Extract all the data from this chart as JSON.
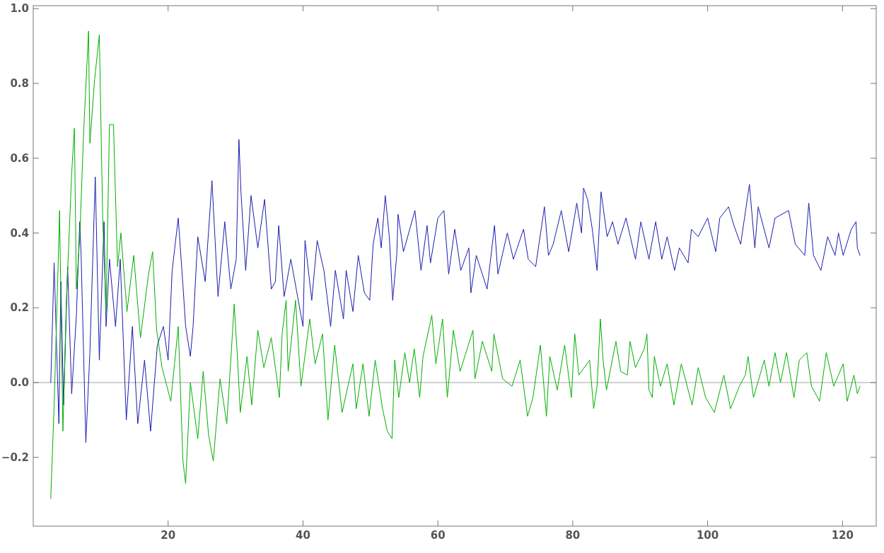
{
  "chart_data": {
    "type": "line",
    "xlim": [
      0,
      125
    ],
    "ylim": [
      -0.384,
      1.008
    ],
    "xticks": [
      20,
      40,
      60,
      80,
      100,
      120
    ],
    "yticks": [
      {
        "value": -0.2,
        "label": "−0.2"
      },
      {
        "value": 0,
        "label": "0.0"
      },
      0.2,
      0.4,
      0.6,
      0.8,
      {
        "value": 1,
        "label": "1.0"
      }
    ],
    "line_style": "solid",
    "ref_lines": [
      {
        "axis": "y",
        "value": 0,
        "color": "#a6a6a6"
      }
    ],
    "series": [
      {
        "color": "#1c1cb0",
        "x": [
          2.6,
          3.1,
          3.8,
          4.1,
          4.5,
          5.1,
          5.7,
          6.4,
          6.9,
          7.1,
          7.8,
          8.4,
          9.2,
          9.8,
          10.5,
          10.8,
          11.3,
          12.2,
          12.9,
          13.8,
          14.7,
          15.5,
          16.5,
          17.4,
          18.4,
          19.3,
          20.0,
          20.6,
          21.5,
          22.2,
          22.6,
          23.3,
          23.7,
          24.4,
          25.5,
          26.5,
          27.4,
          28.4,
          29.3,
          30.1,
          30.5,
          30.8,
          31.5,
          32.3,
          33.3,
          34.3,
          35.3,
          35.9,
          36.4,
          37.2,
          38.2,
          39.0,
          40.0,
          40.3,
          41.3,
          42.1,
          43.1,
          44.1,
          44.8,
          46.0,
          46.4,
          47.4,
          48.2,
          49.1,
          49.9,
          50.4,
          51.1,
          51.6,
          52.2,
          52.8,
          53.3,
          53.9,
          54.1,
          54.9,
          56.6,
          57.5,
          58.4,
          58.9,
          60.0,
          60.9,
          61.6,
          62.5,
          63.4,
          64.6,
          64.9,
          65.7,
          67.3,
          68.4,
          68.9,
          70.3,
          71.2,
          72.7,
          73.4,
          74.5,
          75.8,
          76.4,
          77.1,
          78.3,
          79.4,
          80.6,
          81.3,
          81.6,
          82.2,
          82.9,
          83.6,
          84.2,
          85.1,
          85.9,
          86.7,
          87.9,
          89.3,
          90.1,
          91.3,
          92.3,
          93.2,
          94.0,
          95.1,
          95.8,
          97.1,
          97.6,
          98.6,
          100.0,
          101.2,
          101.8,
          103.1,
          103.9,
          104.9,
          106.2,
          107.0,
          107.5,
          109.1,
          110.0,
          112.0,
          113.0,
          114.4,
          115.0,
          115.7,
          116.8,
          117.8,
          118.9,
          119.4,
          120.1,
          121.3,
          122.0,
          122.2,
          122.6
        ],
        "values": [
          0.0,
          0.32,
          -0.11,
          0.27,
          -0.06,
          0.31,
          -0.03,
          0.18,
          0.43,
          0.34,
          -0.16,
          0.08,
          0.55,
          0.06,
          0.43,
          0.15,
          0.33,
          0.15,
          0.33,
          -0.1,
          0.15,
          -0.11,
          0.06,
          -0.13,
          0.1,
          0.15,
          0.06,
          0.3,
          0.44,
          0.26,
          0.15,
          0.07,
          0.15,
          0.39,
          0.27,
          0.54,
          0.23,
          0.43,
          0.25,
          0.33,
          0.65,
          0.51,
          0.3,
          0.5,
          0.36,
          0.49,
          0.25,
          0.27,
          0.42,
          0.23,
          0.33,
          0.25,
          0.15,
          0.38,
          0.22,
          0.38,
          0.3,
          0.15,
          0.3,
          0.17,
          0.3,
          0.19,
          0.34,
          0.24,
          0.22,
          0.37,
          0.44,
          0.36,
          0.5,
          0.39,
          0.22,
          0.34,
          0.45,
          0.35,
          0.46,
          0.3,
          0.42,
          0.32,
          0.44,
          0.46,
          0.29,
          0.41,
          0.3,
          0.36,
          0.24,
          0.34,
          0.25,
          0.42,
          0.29,
          0.4,
          0.33,
          0.41,
          0.33,
          0.31,
          0.47,
          0.34,
          0.37,
          0.46,
          0.35,
          0.48,
          0.4,
          0.52,
          0.49,
          0.41,
          0.3,
          0.51,
          0.39,
          0.43,
          0.37,
          0.44,
          0.33,
          0.43,
          0.33,
          0.43,
          0.33,
          0.39,
          0.3,
          0.36,
          0.32,
          0.41,
          0.39,
          0.44,
          0.35,
          0.44,
          0.47,
          0.42,
          0.37,
          0.53,
          0.36,
          0.47,
          0.36,
          0.44,
          0.46,
          0.37,
          0.34,
          0.48,
          0.34,
          0.3,
          0.39,
          0.34,
          0.4,
          0.34,
          0.41,
          0.43,
          0.36,
          0.34
        ]
      },
      {
        "color": "#00b000",
        "x": [
          2.6,
          3.1,
          3.7,
          3.9,
          4.4,
          4.9,
          5.7,
          6.1,
          6.4,
          6.9,
          7.5,
          8.2,
          8.4,
          9.1,
          9.8,
          10.3,
          10.8,
          11.3,
          11.9,
          12.5,
          13.0,
          13.9,
          14.9,
          15.9,
          17.1,
          17.7,
          18.3,
          19.1,
          20.4,
          21.5,
          22.2,
          22.6,
          23.3,
          24.4,
          25.2,
          26.0,
          26.7,
          27.7,
          28.7,
          29.5,
          29.8,
          30.3,
          30.7,
          31.7,
          32.4,
          33.3,
          34.2,
          35.3,
          36.5,
          36.9,
          37.5,
          37.8,
          38.9,
          39.7,
          41.0,
          41.8,
          42.9,
          43.7,
          44.7,
          45.8,
          47.4,
          47.9,
          48.9,
          49.8,
          50.7,
          51.8,
          52.5,
          53.2,
          53.6,
          54.2,
          55.1,
          55.8,
          56.5,
          57.3,
          57.8,
          59.1,
          59.7,
          60.7,
          61.4,
          62.3,
          63.3,
          65.2,
          65.5,
          66.6,
          68.0,
          68.3,
          69.6,
          71.0,
          72.2,
          73.3,
          74.1,
          75.2,
          76.1,
          76.6,
          77.7,
          78.8,
          79.8,
          80.3,
          80.9,
          82.5,
          83.1,
          83.6,
          84.1,
          84.5,
          85.0,
          86.4,
          87.1,
          88.1,
          88.5,
          89.3,
          90.6,
          91.0,
          91.3,
          91.8,
          92.1,
          93.0,
          94.0,
          95.0,
          96.1,
          97.7,
          98.6,
          99.7,
          101.0,
          102.4,
          103.4,
          104.7,
          105.6,
          106.0,
          106.8,
          108.4,
          109.1,
          110.0,
          110.8,
          111.7,
          112.8,
          113.6,
          114.7,
          115.4,
          116.6,
          117.6,
          118.7,
          120.1,
          120.7,
          121.7,
          122.2,
          122.6
        ],
        "values": [
          -0.31,
          -0.06,
          0.32,
          0.46,
          -0.13,
          0.21,
          0.56,
          0.68,
          0.25,
          0.39,
          0.68,
          0.94,
          0.64,
          0.81,
          0.93,
          0.44,
          0.19,
          0.69,
          0.69,
          0.31,
          0.4,
          0.19,
          0.34,
          0.12,
          0.29,
          0.35,
          0.14,
          0.04,
          -0.05,
          0.15,
          -0.21,
          -0.27,
          0.0,
          -0.15,
          0.03,
          -0.14,
          -0.21,
          0.01,
          -0.11,
          0.12,
          0.21,
          0.06,
          -0.08,
          0.07,
          -0.06,
          0.14,
          0.04,
          0.12,
          -0.04,
          0.13,
          0.22,
          0.03,
          0.22,
          -0.01,
          0.17,
          0.05,
          0.13,
          -0.1,
          0.1,
          -0.08,
          0.05,
          -0.07,
          0.05,
          -0.09,
          0.06,
          -0.07,
          -0.13,
          -0.15,
          0.06,
          -0.04,
          0.08,
          0.0,
          0.09,
          -0.04,
          0.07,
          0.18,
          0.05,
          0.17,
          -0.04,
          0.14,
          0.03,
          0.14,
          0.01,
          0.11,
          0.03,
          0.13,
          0.01,
          -0.01,
          0.06,
          -0.09,
          -0.04,
          0.1,
          -0.09,
          0.07,
          -0.02,
          0.1,
          -0.04,
          0.13,
          0.02,
          0.06,
          -0.07,
          -0.01,
          0.17,
          0.06,
          -0.02,
          0.11,
          0.03,
          0.02,
          0.11,
          0.04,
          0.09,
          0.13,
          -0.02,
          -0.04,
          0.07,
          -0.01,
          0.05,
          -0.06,
          0.05,
          -0.06,
          0.04,
          -0.04,
          -0.08,
          0.02,
          -0.07,
          -0.01,
          0.02,
          0.07,
          -0.04,
          0.06,
          -0.01,
          0.08,
          0.0,
          0.08,
          -0.04,
          0.06,
          0.08,
          -0.01,
          -0.05,
          0.08,
          -0.01,
          0.05,
          -0.05,
          0.02,
          -0.03,
          -0.01
        ]
      }
    ]
  }
}
